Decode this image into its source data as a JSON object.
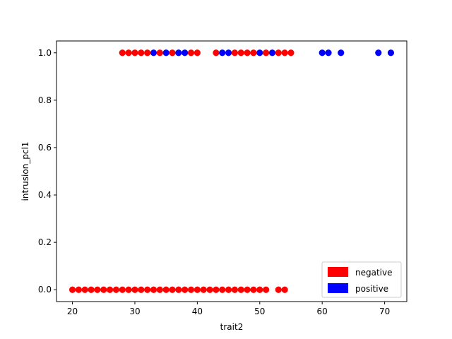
{
  "chart_data": {
    "type": "scatter",
    "title": "",
    "xlabel": "trait2",
    "ylabel": "intrusion_pcl1",
    "xlim": [
      17.45,
      73.55
    ],
    "ylim": [
      -0.05,
      1.05
    ],
    "xticks": [
      20,
      30,
      40,
      50,
      60,
      70
    ],
    "xtick_labels": [
      "20",
      "30",
      "40",
      "50",
      "60",
      "70"
    ],
    "yticks": [
      0.0,
      0.2,
      0.4,
      0.6,
      0.8,
      1.0
    ],
    "ytick_labels": [
      "0.0",
      "0.2",
      "0.4",
      "0.6",
      "0.8",
      "1.0"
    ],
    "grid": false,
    "legend_position": "lower-right",
    "series": [
      {
        "name": "negative",
        "color": "#ff0000",
        "points": [
          [
            20,
            0
          ],
          [
            21,
            0
          ],
          [
            22,
            0
          ],
          [
            23,
            0
          ],
          [
            24,
            0
          ],
          [
            25,
            0
          ],
          [
            26,
            0
          ],
          [
            27,
            0
          ],
          [
            28,
            0
          ],
          [
            29,
            0
          ],
          [
            30,
            0
          ],
          [
            31,
            0
          ],
          [
            32,
            0
          ],
          [
            33,
            0
          ],
          [
            34,
            0
          ],
          [
            35,
            0
          ],
          [
            36,
            0
          ],
          [
            37,
            0
          ],
          [
            38,
            0
          ],
          [
            39,
            0
          ],
          [
            40,
            0
          ],
          [
            41,
            0
          ],
          [
            42,
            0
          ],
          [
            43,
            0
          ],
          [
            44,
            0
          ],
          [
            45,
            0
          ],
          [
            46,
            0
          ],
          [
            47,
            0
          ],
          [
            48,
            0
          ],
          [
            49,
            0
          ],
          [
            50,
            0
          ],
          [
            51,
            0
          ],
          [
            53,
            0
          ],
          [
            54,
            0
          ],
          [
            28,
            1
          ],
          [
            29,
            1
          ],
          [
            30,
            1
          ],
          [
            31,
            1
          ],
          [
            32,
            1
          ],
          [
            34,
            1
          ],
          [
            36,
            1
          ],
          [
            39,
            1
          ],
          [
            40,
            1
          ],
          [
            43,
            1
          ],
          [
            46,
            1
          ],
          [
            47,
            1
          ],
          [
            48,
            1
          ],
          [
            49,
            1
          ],
          [
            51,
            1
          ],
          [
            53,
            1
          ],
          [
            54,
            1
          ],
          [
            55,
            1
          ]
        ]
      },
      {
        "name": "positive",
        "color": "#0000ff",
        "points": [
          [
            33,
            1
          ],
          [
            35,
            1
          ],
          [
            37,
            1
          ],
          [
            38,
            1
          ],
          [
            44,
            1
          ],
          [
            45,
            1
          ],
          [
            50,
            1
          ],
          [
            52,
            1
          ],
          [
            60,
            1
          ],
          [
            61,
            1
          ],
          [
            63,
            1
          ],
          [
            69,
            1
          ],
          [
            71,
            1
          ]
        ]
      }
    ]
  }
}
